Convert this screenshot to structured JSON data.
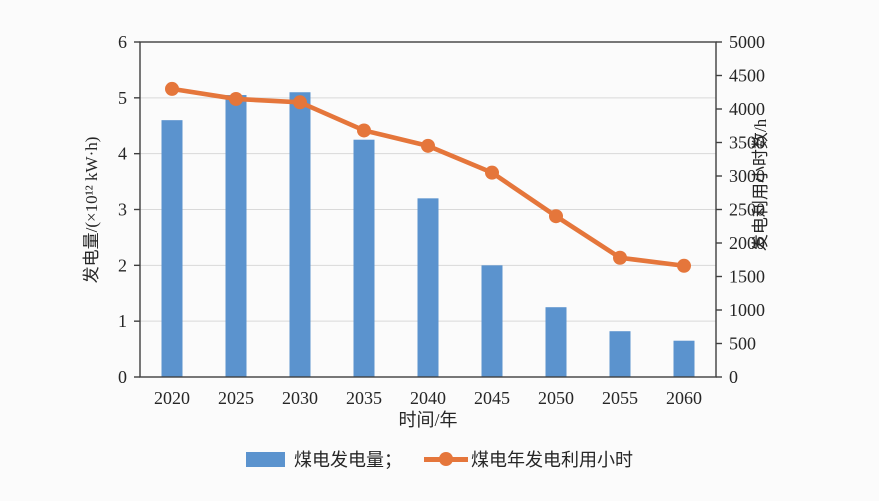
{
  "figure": {
    "background": "#FBFBFB",
    "text_color": "#262626",
    "axis_color": "#3F3F3F",
    "grid_color": "#D9D9D9"
  },
  "legend": {
    "bar_label": "煤电发电量；",
    "line_label": "煤电年发电利用小时"
  },
  "chart_data": {
    "type": "bar",
    "title": "",
    "categories": [
      "2020",
      "2025",
      "2030",
      "2035",
      "2040",
      "2045",
      "2050",
      "2055",
      "2060"
    ],
    "series": [
      {
        "name": "煤电发电量",
        "type": "bar",
        "y_axis": "left",
        "color": "#5B93CE",
        "values": [
          4.6,
          5.05,
          5.1,
          4.25,
          3.2,
          2.0,
          1.25,
          0.82,
          0.65
        ]
      },
      {
        "name": "煤电年发电利用小时",
        "type": "line",
        "y_axis": "right",
        "color": "#E5763B",
        "values": [
          4300,
          4150,
          4100,
          3680,
          3450,
          3050,
          2400,
          1780,
          1660
        ]
      }
    ],
    "xlabel": "时间/年",
    "axes": {
      "left": {
        "label": "发电量/(×10¹² kW·h)",
        "min": 0,
        "max": 6,
        "ticks": [
          0,
          1,
          2,
          3,
          4,
          5,
          6
        ]
      },
      "right": {
        "label": "发电利用小时数/h",
        "min": 0,
        "max": 5000,
        "ticks": [
          0,
          500,
          1000,
          1500,
          2000,
          2500,
          3000,
          3500,
          4000,
          4500,
          5000
        ]
      }
    },
    "grid": "horizontal",
    "legend_position": "bottom-center"
  }
}
